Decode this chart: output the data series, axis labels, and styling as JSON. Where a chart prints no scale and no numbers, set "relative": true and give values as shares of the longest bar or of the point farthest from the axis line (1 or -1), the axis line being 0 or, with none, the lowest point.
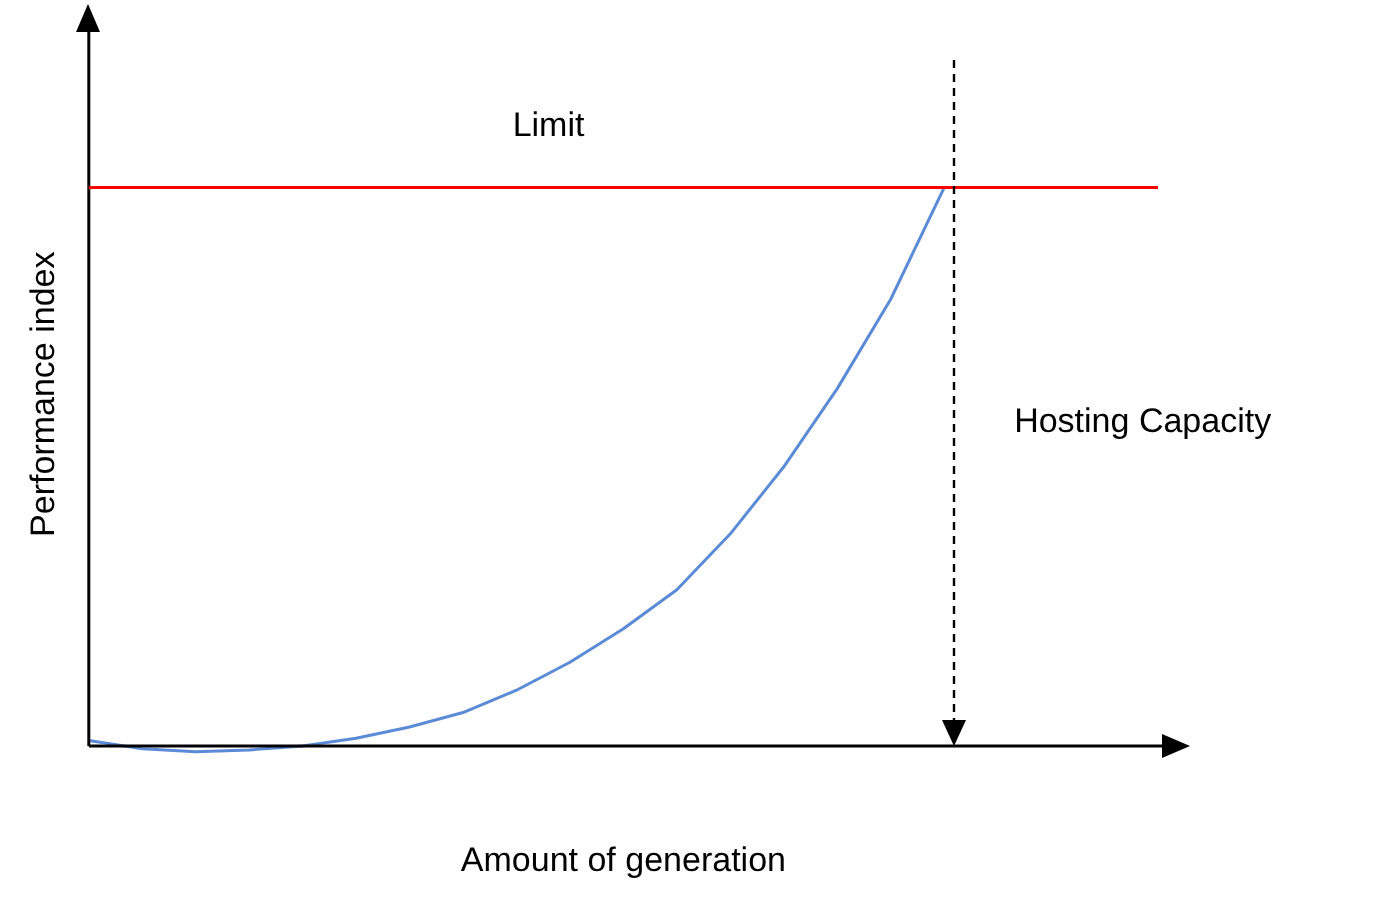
{
  "chart_data": {
    "type": "line",
    "relative": true,
    "xlabel": "Amount of generation",
    "ylabel": "Performance index",
    "categories": [
      null,
      null,
      null,
      null,
      null,
      null,
      null,
      null,
      null,
      null,
      null,
      null,
      null,
      null,
      null,
      null,
      null,
      null,
      null,
      null,
      null
    ],
    "series": [
      {
        "color": "#5b8bd6",
        "values": [
          0.01,
          -0.005,
          -0.01,
          -0.007,
          0,
          0.014,
          0.034,
          0.06,
          0.1,
          0.15,
          0.21,
          0.28,
          0.38,
          0.5,
          0.64,
          0.8,
          1,
          null,
          null,
          null,
          null
        ]
      }
    ],
    "ref_lines": [
      {
        "axis": "y",
        "value": 1,
        "label": "Limit",
        "color": "#ff0000"
      }
    ],
    "annotations": [
      "Hosting Capacity"
    ],
    "grid": false,
    "legend": false,
    "marker": "none",
    "line_style": "solid"
  }
}
